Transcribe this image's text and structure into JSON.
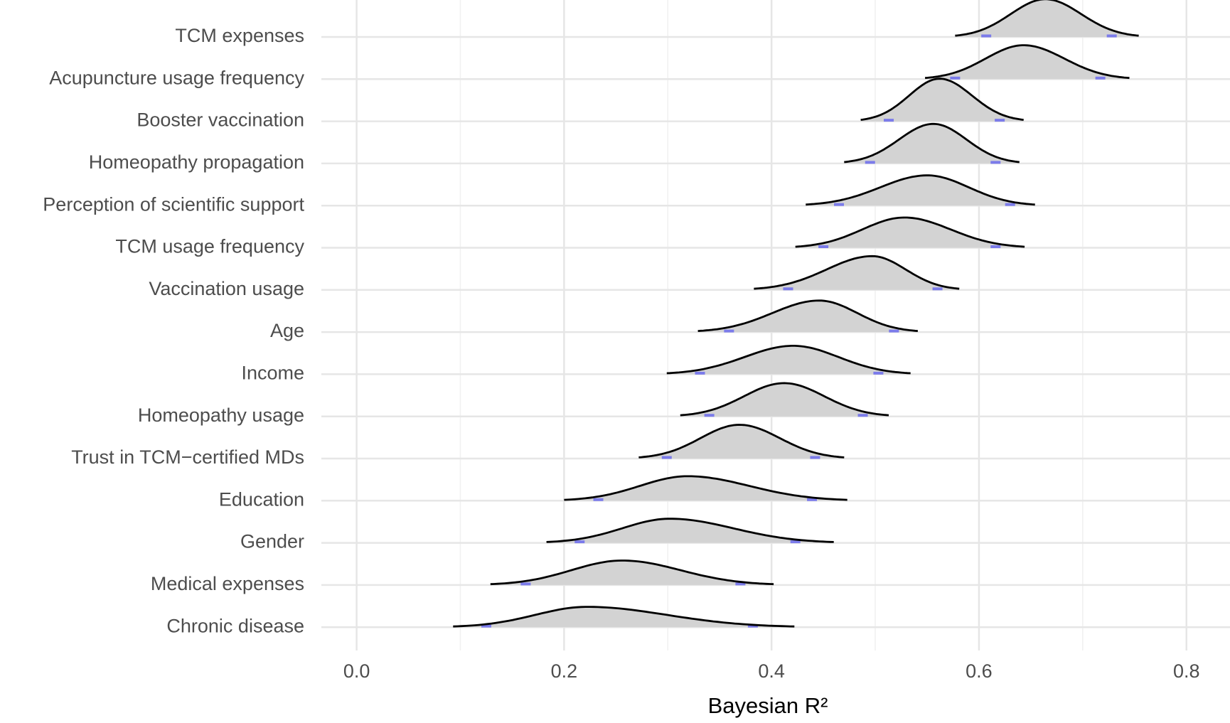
{
  "chart_data": {
    "type": "ridgeline",
    "x_label": "Bayesian R²",
    "categories": [
      "TCM expenses",
      "Acupuncture usage frequency",
      "Booster vaccination",
      "Homeopathy propagation",
      "Perception of scientific support",
      "TCM usage frequency",
      "Vaccination usage",
      "Age",
      "Income",
      "Homeopathy usage",
      "Trust in TCM−certified MDs",
      "Education",
      "Gender",
      "Medical expenses",
      "Chronic disease"
    ],
    "lower": [
      0.577,
      0.548,
      0.486,
      0.47,
      0.433,
      0.423,
      0.383,
      0.329,
      0.299,
      0.312,
      0.272,
      0.2,
      0.183,
      0.129,
      0.093
    ],
    "mode": [
      0.664,
      0.643,
      0.562,
      0.556,
      0.55,
      0.528,
      0.497,
      0.446,
      0.421,
      0.412,
      0.369,
      0.319,
      0.302,
      0.256,
      0.222
    ],
    "upper": [
      0.754,
      0.745,
      0.643,
      0.639,
      0.654,
      0.644,
      0.581,
      0.541,
      0.534,
      0.513,
      0.47,
      0.473,
      0.46,
      0.402,
      0.422
    ],
    "ci_lower": [
      0.607,
      0.577,
      0.513,
      0.495,
      0.465,
      0.45,
      0.416,
      0.359,
      0.331,
      0.34,
      0.299,
      0.233,
      0.215,
      0.163,
      0.125
    ],
    "ci_upper": [
      0.728,
      0.717,
      0.62,
      0.616,
      0.63,
      0.616,
      0.56,
      0.518,
      0.503,
      0.488,
      0.442,
      0.439,
      0.423,
      0.37,
      0.382
    ],
    "fill": "#d3d3d3",
    "ci_color": "#7b7bea",
    "xlim": [
      -0.034,
      0.842
    ],
    "xticks": [
      {
        "value": 0,
        "label": "0.0"
      },
      0.2,
      0.4,
      0.6,
      0.8
    ],
    "grid": true
  }
}
